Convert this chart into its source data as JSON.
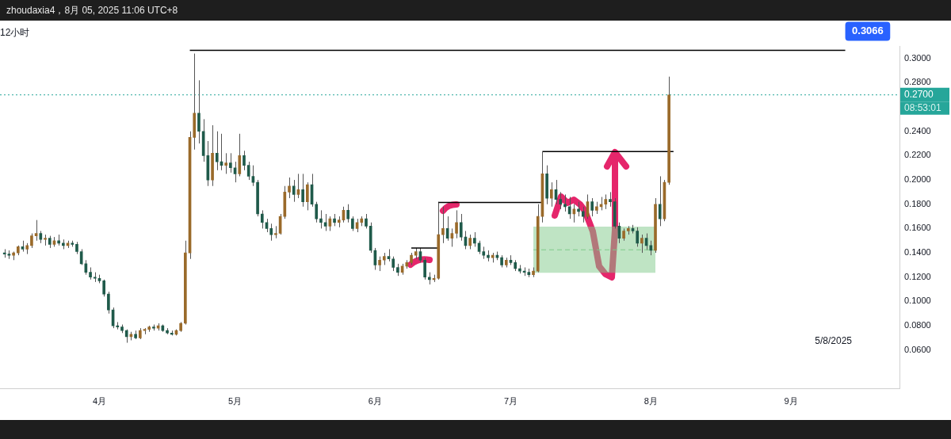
{
  "chart_data": {
    "type": "candlestick",
    "title": "12小时",
    "annotations": [
      "zhoudaxia4，8月 05, 2025 11:06 UTC+8",
      "08:53:01",
      "5/8/2025",
      {
        "text": "0.3066",
        "x": "2025-09-13",
        "y": 0.3066
      }
    ],
    "colors": [
      "#1f5a4a",
      "#1f5a4a",
      "#9a6a2a",
      "#9a6a2a",
      "#1f5a4a",
      "#9a6a2a",
      "#9a6a2a",
      "#9a6a2a",
      "#1f5a4a",
      "#9a6a2a",
      "#1f5a4a",
      "#9a6a2a",
      "#1f5a4a",
      "#1f5a4a",
      "#9a6a2a",
      "#1f5a4a",
      "#1f5a4a",
      "#1f5a4a",
      "#1f5a4a",
      "#1f5a4a",
      "#1f5a4a",
      "#1f5a4a",
      "#1f5a4a",
      "#1f5a4a",
      "#1f5a4a",
      "#1f5a4a",
      "#1f5a4a",
      "#1f5a4a",
      "#9a6a2a",
      "#1f5a4a",
      "#9a6a2a",
      "#9a6a2a",
      "#9a6a2a",
      "#1f5a4a",
      "#9a6a2a",
      "#1f5a4a",
      "#1f5a4a",
      "#1f5a4a",
      "#9a6a2a",
      "#9a6a2a",
      "#9a6a2a",
      "#9a6a2a",
      "#9a6a2a",
      "#1f5a4a",
      "#1f5a4a",
      "#1f5a4a",
      "#9a6a2a",
      "#1f5a4a",
      "#1f5a4a",
      "#9a6a2a",
      "#1f5a4a",
      "#1f5a4a",
      "#9a6a2a",
      "#1f5a4a",
      "#1f5a4a",
      "#1f5a4a",
      "#1f5a4a",
      "#1f5a4a",
      "#1f5a4a",
      "#1f5a4a",
      "#9a6a2a",
      "#9a6a2a",
      "#9a6a2a",
      "#9a6a2a",
      "#1f5a4a",
      "#9a6a2a",
      "#1f5a4a",
      "#9a6a2a",
      "#1f5a4a",
      "#1f5a4a",
      "#1f5a4a",
      "#1f5a4a",
      "#9a6a2a",
      "#1f5a4a",
      "#9a6a2a",
      "#9a6a2a",
      "#1f5a4a",
      "#1f5a4a",
      "#9a6a2a",
      "#9a6a2a",
      "#1f5a4a",
      "#1f5a4a",
      "#1f5a4a",
      "#9a6a2a",
      "#9a6a2a",
      "#1f5a4a",
      "#1f5a4a",
      "#1f5a4a",
      "#9a6a2a",
      "#9a6a2a",
      "#9a6a2a",
      "#9a6a2a",
      "#1f5a4a",
      "#1f5a4a",
      "#1f5a4a",
      "#9a6a2a",
      "#9a6a2a",
      "#9a6a2a",
      "#1f5a4a",
      "#9a6a2a",
      "#9a6a2a",
      "#1f5a4a",
      "#1f5a4a",
      "#9a6a2a",
      "#1f5a4a",
      "#1f5a4a",
      "#1f5a4a",
      "#1f5a4a",
      "#9a6a2a",
      "#1f5a4a",
      "#1f5a4a",
      "#9a6a2a",
      "#1f5a4a",
      "#1f5a4a",
      "#1f5a4a",
      "#1f5a4a",
      "#1f5a4a",
      "#9a6a2a",
      "#9a6a2a",
      "#9a6a2a",
      "#1f5a4a",
      "#9a6a2a",
      "#1f5a4a",
      "#1f5a4a",
      "#1f5a4a",
      "#1f5a4a",
      "#9a6a2a",
      "#1f5a4a",
      "#1f5a4a",
      "#9a6a2a",
      "#1f5a4a",
      "#9a6a2a",
      "#9a6a2a",
      "#9a6a2a",
      "#1f5a4a",
      "#1f5a4a",
      "#1f5a4a",
      "#9a6a2a",
      "#9a6a2a",
      "#1f5a4a",
      "#1f5a4a",
      "#9a6a2a",
      "#1f5a4a",
      "#1f5a4a",
      "#9a6a2a",
      "#1f5a4a",
      "#9a6a2a",
      "#9a6a2a"
    ],
    "xlim": [
      "2025-03-10",
      "2025-09-25"
    ],
    "xticks": [
      {
        "value": "2025-04-01",
        "label": "4月"
      },
      {
        "value": "2025-05-01",
        "label": "5月"
      },
      {
        "value": "2025-06-01",
        "label": "6月"
      },
      {
        "value": "2025-07-01",
        "label": "7月"
      },
      {
        "value": "2025-08-01",
        "label": "8月"
      },
      {
        "value": "2025-09-01",
        "label": "9月"
      }
    ],
    "ylim": [
      0.028,
      0.31
    ],
    "yticks": [
      {
        "value": 0.06,
        "label": "0.0600"
      },
      {
        "value": 0.08,
        "label": "0.0800"
      },
      {
        "value": 0.1,
        "label": "0.1000"
      },
      {
        "value": 0.12,
        "label": "0.1200"
      },
      {
        "value": 0.14,
        "label": "0.1400"
      },
      {
        "value": 0.16,
        "label": "0.1600"
      },
      {
        "value": 0.18,
        "label": "0.1800"
      },
      {
        "value": 0.2,
        "label": "0.2000"
      },
      {
        "value": 0.22,
        "label": "0.2200"
      },
      {
        "value": 0.24,
        "label": "0.2400"
      },
      {
        "value": 0.28,
        "label": "0.2800"
      },
      {
        "value": 0.3,
        "label": "0.3000"
      }
    ],
    "ref_lines": [
      {
        "axis": "y",
        "value": 0.27,
        "label": "0.2700",
        "color": "#26a69a",
        "line_style": "dotted"
      }
    ],
    "series": [
      {
        "type": "line",
        "color": "#000000",
        "x": [
          "2025-06-09",
          "2025-06-15"
        ],
        "values": [
          0.144,
          0.144
        ]
      },
      {
        "type": "line",
        "color": "#000000",
        "x": [
          "2025-06-15",
          "2025-07-08"
        ],
        "values": [
          0.1815,
          0.1815
        ]
      },
      {
        "type": "line",
        "color": "#000000",
        "x": [
          "2025-07-08",
          "2025-08-06"
        ],
        "values": [
          0.2233,
          0.2233
        ]
      },
      {
        "type": "line",
        "color": "#000000",
        "x": [
          "2025-04-21",
          "2025-09-13"
        ],
        "values": [
          0.3066,
          0.3066
        ]
      },
      {
        "type": "line",
        "color": "#7fc98a",
        "line_style": "dashed",
        "x": [
          "2025-07-06",
          "2025-08-02"
        ],
        "values": [
          0.1425,
          0.1425
        ],
        "lower": [
          0.1235,
          0.1235
        ],
        "upper": [
          0.1615,
          0.1615
        ]
      }
    ],
    "x": [
      "2025-03-11",
      "2025-03-12",
      "2025-03-13",
      "2025-03-14",
      "2025-03-15",
      "2025-03-16",
      "2025-03-17",
      "2025-03-18",
      "2025-03-19",
      "2025-03-20",
      "2025-03-21",
      "2025-03-22",
      "2025-03-23",
      "2025-03-24",
      "2025-03-25",
      "2025-03-26",
      "2025-03-27",
      "2025-03-28",
      "2025-03-29",
      "2025-03-30",
      "2025-03-31",
      "2025-04-01",
      "2025-04-02",
      "2025-04-03",
      "2025-04-04",
      "2025-04-05",
      "2025-04-06",
      "2025-04-07",
      "2025-04-08",
      "2025-04-09",
      "2025-04-10",
      "2025-04-11",
      "2025-04-12",
      "2025-04-13",
      "2025-04-14",
      "2025-04-15",
      "2025-04-16",
      "2025-04-17",
      "2025-04-18",
      "2025-04-19",
      "2025-04-20",
      "2025-04-21",
      "2025-04-22",
      "2025-04-23",
      "2025-04-24",
      "2025-04-25",
      "2025-04-26",
      "2025-04-27",
      "2025-04-28",
      "2025-04-29",
      "2025-04-30",
      "2025-05-01",
      "2025-05-02",
      "2025-05-03",
      "2025-05-04",
      "2025-05-05",
      "2025-05-06",
      "2025-05-07",
      "2025-05-08",
      "2025-05-09",
      "2025-05-10",
      "2025-05-11",
      "2025-05-12",
      "2025-05-13",
      "2025-05-14",
      "2025-05-15",
      "2025-05-16",
      "2025-05-17",
      "2025-05-18",
      "2025-05-19",
      "2025-05-20",
      "2025-05-21",
      "2025-05-22",
      "2025-05-23",
      "2025-05-24",
      "2025-05-25",
      "2025-05-26",
      "2025-05-27",
      "2025-05-28",
      "2025-05-29",
      "2025-05-30",
      "2025-05-31",
      "2025-06-01",
      "2025-06-02",
      "2025-06-03",
      "2025-06-04",
      "2025-06-05",
      "2025-06-06",
      "2025-06-07",
      "2025-06-08",
      "2025-06-09",
      "2025-06-10",
      "2025-06-11",
      "2025-06-12",
      "2025-06-13",
      "2025-06-14",
      "2025-06-15",
      "2025-06-16",
      "2025-06-17",
      "2025-06-18",
      "2025-06-19",
      "2025-06-20",
      "2025-06-21",
      "2025-06-22",
      "2025-06-23",
      "2025-06-24",
      "2025-06-25",
      "2025-06-26",
      "2025-06-27",
      "2025-06-28",
      "2025-06-29",
      "2025-06-30",
      "2025-07-01",
      "2025-07-02",
      "2025-07-03",
      "2025-07-04",
      "2025-07-05",
      "2025-07-06",
      "2025-07-07",
      "2025-07-08",
      "2025-07-09",
      "2025-07-10",
      "2025-07-11",
      "2025-07-12",
      "2025-07-13",
      "2025-07-14",
      "2025-07-15",
      "2025-07-16",
      "2025-07-17",
      "2025-07-18",
      "2025-07-19",
      "2025-07-20",
      "2025-07-21",
      "2025-07-22",
      "2025-07-23",
      "2025-07-24",
      "2025-07-25",
      "2025-07-26",
      "2025-07-27",
      "2025-07-28",
      "2025-07-29",
      "2025-07-30",
      "2025-07-31",
      "2025-08-01",
      "2025-08-02",
      "2025-08-03",
      "2025-08-04",
      "2025-08-05"
    ],
    "ohlc": [
      [
        0.14,
        0.143,
        0.136,
        0.139
      ],
      [
        0.139,
        0.142,
        0.135,
        0.138
      ],
      [
        0.138,
        0.141,
        0.134,
        0.14
      ],
      [
        0.14,
        0.146,
        0.138,
        0.145
      ],
      [
        0.145,
        0.15,
        0.141,
        0.143
      ],
      [
        0.143,
        0.148,
        0.139,
        0.146
      ],
      [
        0.146,
        0.156,
        0.144,
        0.154
      ],
      [
        0.154,
        0.167,
        0.15,
        0.156
      ],
      [
        0.156,
        0.158,
        0.148,
        0.151
      ],
      [
        0.151,
        0.155,
        0.146,
        0.152
      ],
      [
        0.152,
        0.154,
        0.144,
        0.147
      ],
      [
        0.147,
        0.153,
        0.145,
        0.15
      ],
      [
        0.15,
        0.155,
        0.146,
        0.148
      ],
      [
        0.148,
        0.151,
        0.143,
        0.146
      ],
      [
        0.146,
        0.15,
        0.144,
        0.148
      ],
      [
        0.148,
        0.15,
        0.145,
        0.147
      ],
      [
        0.147,
        0.149,
        0.139,
        0.141
      ],
      [
        0.141,
        0.143,
        0.13,
        0.131
      ],
      [
        0.131,
        0.134,
        0.122,
        0.124
      ],
      [
        0.124,
        0.128,
        0.118,
        0.12
      ],
      [
        0.12,
        0.124,
        0.116,
        0.119
      ],
      [
        0.119,
        0.122,
        0.115,
        0.117
      ],
      [
        0.117,
        0.118,
        0.104,
        0.106
      ],
      [
        0.106,
        0.108,
        0.09,
        0.093
      ],
      [
        0.093,
        0.095,
        0.078,
        0.08
      ],
      [
        0.08,
        0.083,
        0.077,
        0.079
      ],
      [
        0.079,
        0.081,
        0.074,
        0.076
      ],
      [
        0.076,
        0.077,
        0.066,
        0.071
      ],
      [
        0.071,
        0.075,
        0.068,
        0.073
      ],
      [
        0.073,
        0.076,
        0.069,
        0.07
      ],
      [
        0.07,
        0.078,
        0.069,
        0.076
      ],
      [
        0.076,
        0.078,
        0.073,
        0.077
      ],
      [
        0.077,
        0.08,
        0.075,
        0.079
      ],
      [
        0.079,
        0.081,
        0.076,
        0.078
      ],
      [
        0.078,
        0.082,
        0.076,
        0.08
      ],
      [
        0.08,
        0.081,
        0.075,
        0.076
      ],
      [
        0.076,
        0.078,
        0.073,
        0.074
      ],
      [
        0.074,
        0.076,
        0.072,
        0.073
      ],
      [
        0.073,
        0.077,
        0.072,
        0.076
      ],
      [
        0.076,
        0.083,
        0.075,
        0.082
      ],
      [
        0.082,
        0.15,
        0.081,
        0.14
      ],
      [
        0.14,
        0.24,
        0.135,
        0.235
      ],
      [
        0.235,
        0.304,
        0.225,
        0.255
      ],
      [
        0.255,
        0.282,
        0.23,
        0.24
      ],
      [
        0.24,
        0.25,
        0.215,
        0.22
      ],
      [
        0.22,
        0.232,
        0.195,
        0.2
      ],
      [
        0.2,
        0.245,
        0.195,
        0.222
      ],
      [
        0.222,
        0.24,
        0.208,
        0.215
      ],
      [
        0.215,
        0.238,
        0.208,
        0.212
      ],
      [
        0.212,
        0.222,
        0.205,
        0.214
      ],
      [
        0.214,
        0.222,
        0.206,
        0.21
      ],
      [
        0.21,
        0.215,
        0.198,
        0.205
      ],
      [
        0.205,
        0.238,
        0.203,
        0.22
      ],
      [
        0.22,
        0.224,
        0.208,
        0.212
      ],
      [
        0.212,
        0.215,
        0.2,
        0.203
      ],
      [
        0.203,
        0.212,
        0.195,
        0.198
      ],
      [
        0.198,
        0.2,
        0.17,
        0.172
      ],
      [
        0.172,
        0.175,
        0.16,
        0.165
      ],
      [
        0.165,
        0.168,
        0.157,
        0.16
      ],
      [
        0.16,
        0.164,
        0.15,
        0.155
      ],
      [
        0.155,
        0.162,
        0.152,
        0.156
      ],
      [
        0.156,
        0.172,
        0.155,
        0.17
      ],
      [
        0.17,
        0.195,
        0.168,
        0.19
      ],
      [
        0.19,
        0.202,
        0.185,
        0.195
      ],
      [
        0.195,
        0.2,
        0.182,
        0.188
      ],
      [
        0.188,
        0.205,
        0.185,
        0.192
      ],
      [
        0.192,
        0.205,
        0.178,
        0.182
      ],
      [
        0.182,
        0.198,
        0.175,
        0.196
      ],
      [
        0.196,
        0.205,
        0.178,
        0.18
      ],
      [
        0.18,
        0.182,
        0.165,
        0.168
      ],
      [
        0.168,
        0.175,
        0.16,
        0.165
      ],
      [
        0.165,
        0.172,
        0.158,
        0.162
      ],
      [
        0.162,
        0.17,
        0.158,
        0.168
      ],
      [
        0.168,
        0.172,
        0.162,
        0.165
      ],
      [
        0.165,
        0.17,
        0.161,
        0.167
      ],
      [
        0.167,
        0.178,
        0.165,
        0.175
      ],
      [
        0.175,
        0.18,
        0.165,
        0.168
      ],
      [
        0.168,
        0.17,
        0.158,
        0.16
      ],
      [
        0.16,
        0.168,
        0.157,
        0.165
      ],
      [
        0.165,
        0.17,
        0.162,
        0.168
      ],
      [
        0.168,
        0.172,
        0.16,
        0.162
      ],
      [
        0.162,
        0.165,
        0.14,
        0.142
      ],
      [
        0.142,
        0.144,
        0.126,
        0.13
      ],
      [
        0.13,
        0.137,
        0.125,
        0.134
      ],
      [
        0.134,
        0.14,
        0.13,
        0.137
      ],
      [
        0.137,
        0.143,
        0.133,
        0.135
      ],
      [
        0.135,
        0.137,
        0.125,
        0.128
      ],
      [
        0.128,
        0.131,
        0.121,
        0.124
      ],
      [
        0.124,
        0.131,
        0.122,
        0.129
      ],
      [
        0.129,
        0.134,
        0.127,
        0.132
      ],
      [
        0.132,
        0.14,
        0.13,
        0.138
      ],
      [
        0.138,
        0.144,
        0.135,
        0.141
      ],
      [
        0.141,
        0.144,
        0.132,
        0.134
      ],
      [
        0.134,
        0.136,
        0.118,
        0.12
      ],
      [
        0.12,
        0.124,
        0.114,
        0.118
      ],
      [
        0.118,
        0.122,
        0.116,
        0.119
      ],
      [
        0.119,
        0.182,
        0.118,
        0.155
      ],
      [
        0.155,
        0.178,
        0.148,
        0.16
      ],
      [
        0.16,
        0.17,
        0.15,
        0.152
      ],
      [
        0.152,
        0.16,
        0.145,
        0.156
      ],
      [
        0.156,
        0.175,
        0.152,
        0.165
      ],
      [
        0.165,
        0.172,
        0.15,
        0.153
      ],
      [
        0.153,
        0.158,
        0.143,
        0.146
      ],
      [
        0.146,
        0.155,
        0.143,
        0.152
      ],
      [
        0.152,
        0.157,
        0.145,
        0.148
      ],
      [
        0.148,
        0.15,
        0.139,
        0.141
      ],
      [
        0.141,
        0.145,
        0.135,
        0.138
      ],
      [
        0.138,
        0.142,
        0.133,
        0.136
      ],
      [
        0.136,
        0.14,
        0.132,
        0.138
      ],
      [
        0.138,
        0.141,
        0.134,
        0.136
      ],
      [
        0.136,
        0.138,
        0.128,
        0.13
      ],
      [
        0.13,
        0.136,
        0.128,
        0.134
      ],
      [
        0.134,
        0.138,
        0.13,
        0.132
      ],
      [
        0.132,
        0.134,
        0.125,
        0.127
      ],
      [
        0.127,
        0.13,
        0.123,
        0.125
      ],
      [
        0.125,
        0.128,
        0.121,
        0.124
      ],
      [
        0.124,
        0.127,
        0.12,
        0.122
      ],
      [
        0.122,
        0.128,
        0.12,
        0.125
      ],
      [
        0.125,
        0.18,
        0.124,
        0.17
      ],
      [
        0.17,
        0.223,
        0.165,
        0.205
      ],
      [
        0.205,
        0.212,
        0.18,
        0.185
      ],
      [
        0.185,
        0.198,
        0.178,
        0.192
      ],
      [
        0.192,
        0.2,
        0.18,
        0.184
      ],
      [
        0.184,
        0.19,
        0.176,
        0.18
      ],
      [
        0.18,
        0.188,
        0.174,
        0.178
      ],
      [
        0.178,
        0.186,
        0.168,
        0.172
      ],
      [
        0.172,
        0.18,
        0.165,
        0.176
      ],
      [
        0.176,
        0.182,
        0.17,
        0.174
      ],
      [
        0.174,
        0.178,
        0.165,
        0.17
      ],
      [
        0.17,
        0.188,
        0.168,
        0.182
      ],
      [
        0.182,
        0.185,
        0.17,
        0.175
      ],
      [
        0.175,
        0.182,
        0.172,
        0.178
      ],
      [
        0.178,
        0.186,
        0.175,
        0.18
      ],
      [
        0.18,
        0.188,
        0.176,
        0.184
      ],
      [
        0.184,
        0.19,
        0.178,
        0.182
      ],
      [
        0.182,
        0.185,
        0.16,
        0.162
      ],
      [
        0.162,
        0.165,
        0.148,
        0.152
      ],
      [
        0.152,
        0.16,
        0.15,
        0.158
      ],
      [
        0.158,
        0.162,
        0.155,
        0.16
      ],
      [
        0.16,
        0.163,
        0.156,
        0.158
      ],
      [
        0.158,
        0.161,
        0.145,
        0.148
      ],
      [
        0.148,
        0.155,
        0.14,
        0.152
      ],
      [
        0.152,
        0.156,
        0.142,
        0.146
      ],
      [
        0.146,
        0.15,
        0.138,
        0.142
      ],
      [
        0.142,
        0.185,
        0.14,
        0.18
      ],
      [
        0.18,
        0.203,
        0.162,
        0.168
      ],
      [
        0.168,
        0.2,
        0.166,
        0.198
      ],
      [
        0.198,
        0.285,
        0.196,
        0.27
      ]
    ]
  }
}
